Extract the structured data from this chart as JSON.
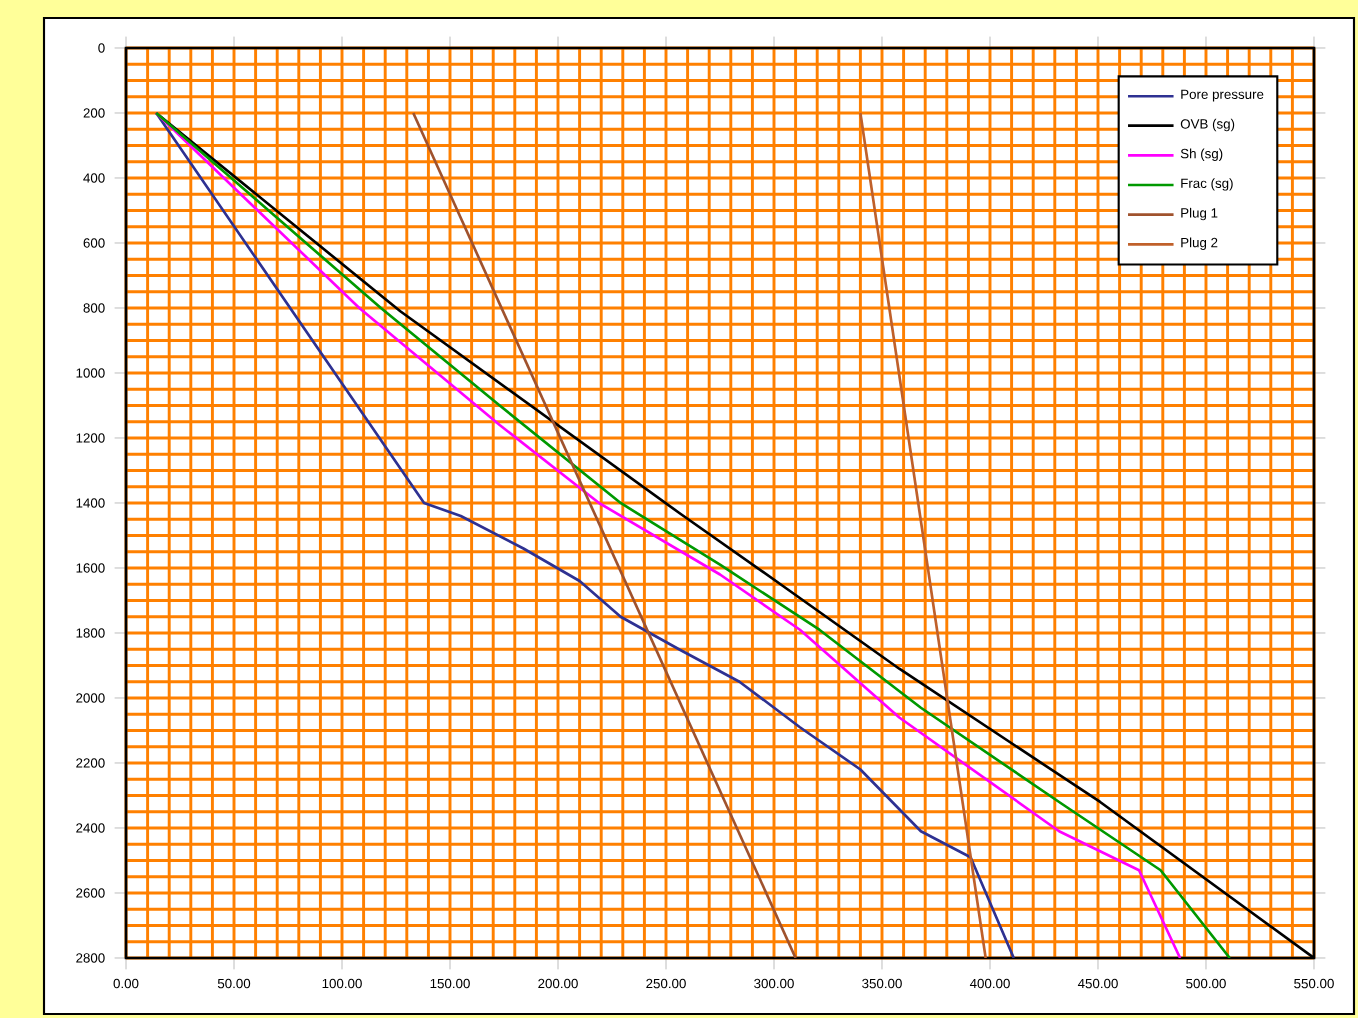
{
  "chart_data": {
    "type": "line",
    "series": [
      {
        "name": "Pore pressure",
        "color": "#2e3192",
        "x": [
          14,
          138,
          155,
          184,
          210,
          229,
          256,
          284,
          312,
          340,
          368,
          391,
          411
        ],
        "values": [
          200,
          1400,
          1440,
          1540,
          1640,
          1750,
          1850,
          1950,
          2090,
          2220,
          2410,
          2490,
          2800
        ]
      },
      {
        "name": "OVB (sg)",
        "color": "#000000",
        "x": [
          14,
          127,
          256,
          303,
          358,
          451,
          550
        ],
        "values": [
          200,
          810,
          1430,
          1650,
          1910,
          2320,
          2800
        ]
      },
      {
        "name": "Sh (sg)",
        "color": "#ff00ff",
        "x": [
          14,
          108,
          173,
          219,
          275,
          312,
          358,
          432,
          469,
          488
        ],
        "values": [
          200,
          800,
          1160,
          1400,
          1620,
          1790,
          2060,
          2410,
          2530,
          2800
        ]
      },
      {
        "name": "Frac (sg)",
        "color": "#009900",
        "x": [
          14,
          118,
          173,
          229,
          275,
          321,
          368,
          432,
          479,
          511
        ],
        "values": [
          200,
          800,
          1100,
          1400,
          1590,
          1790,
          2030,
          2320,
          2530,
          2800
        ]
      },
      {
        "name": "Plug 1",
        "color": "#a0522d",
        "x": [
          133,
          310
        ],
        "values": [
          200,
          2800
        ]
      },
      {
        "name": "Plug 2",
        "color": "#c0602a",
        "x": [
          340,
          398
        ],
        "values": [
          200,
          2800
        ]
      }
    ],
    "xlim": [
      0,
      550
    ],
    "xticks": [
      {
        "value": 0,
        "label": "0.00"
      },
      {
        "value": 50,
        "label": "50.00"
      },
      {
        "value": 100,
        "label": "100.00"
      },
      {
        "value": 150,
        "label": "150.00"
      },
      {
        "value": 200,
        "label": "200.00"
      },
      {
        "value": 250,
        "label": "250.00"
      },
      {
        "value": 300,
        "label": "300.00"
      },
      {
        "value": 350,
        "label": "350.00"
      },
      {
        "value": 400,
        "label": "400.00"
      },
      {
        "value": 450,
        "label": "450.00"
      },
      {
        "value": 500,
        "label": "500.00"
      },
      {
        "value": 550,
        "label": "550.00"
      }
    ],
    "ylim": [
      2800,
      0
    ],
    "yticks": [
      0,
      200,
      400,
      600,
      800,
      1000,
      1200,
      1400,
      1600,
      1800,
      2000,
      2200,
      2400,
      2600,
      2800
    ],
    "grid": true,
    "legend": "top right"
  }
}
